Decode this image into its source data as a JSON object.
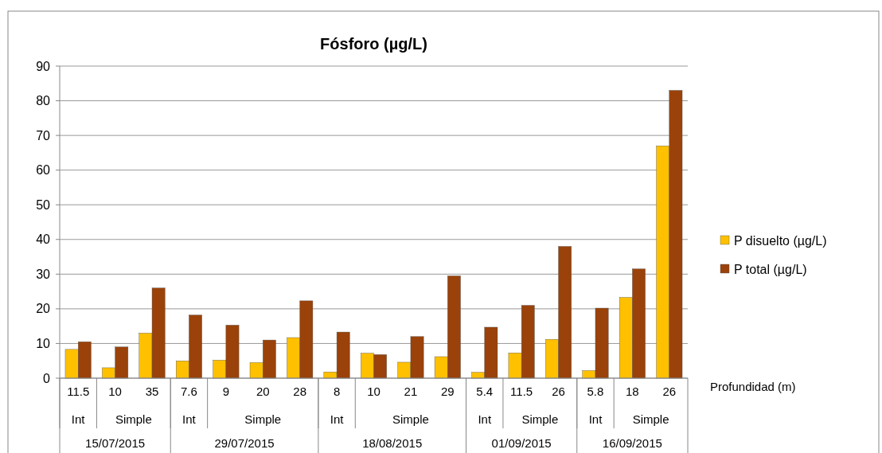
{
  "chart_data": {
    "type": "bar",
    "title": "Fósforo (µg/L)",
    "xlabel": "Profundidad (m)",
    "categories": [
      "11.5",
      "10",
      "35",
      "7.6",
      "9",
      "20",
      "28",
      "8",
      "10",
      "21",
      "29",
      "5.4",
      "11.5",
      "26",
      "5.8",
      "18",
      "26"
    ],
    "series": [
      {
        "name": "P disuelto (µg/L)",
        "color": "#ffc000",
        "values": [
          8.3,
          3,
          13,
          5,
          5.2,
          4.5,
          11.7,
          1.8,
          7.2,
          4.6,
          6.2,
          1.7,
          7.3,
          11.2,
          2.2,
          23.3,
          67
        ]
      },
      {
        "name": "P total (µg/L)",
        "color": "#9a4209",
        "values": [
          10.5,
          9,
          26,
          18.2,
          15.3,
          11,
          22.3,
          13.3,
          6.8,
          12,
          29.5,
          14.7,
          21,
          38,
          20.2,
          31.5,
          83
        ]
      }
    ],
    "annotations": [
      "Int",
      "Simple",
      "Int",
      "Simple",
      "Int",
      "Simple",
      "Int",
      "Simple",
      "Int",
      "Simple",
      "15/07/2015",
      "29/07/2015",
      "18/08/2015",
      "01/09/2015",
      "16/09/2015"
    ],
    "ylim": [
      0,
      90
    ],
    "yticks": [
      0,
      10,
      20,
      30,
      40,
      50,
      60,
      70,
      80,
      90
    ],
    "grid": "y",
    "legend": "right"
  }
}
